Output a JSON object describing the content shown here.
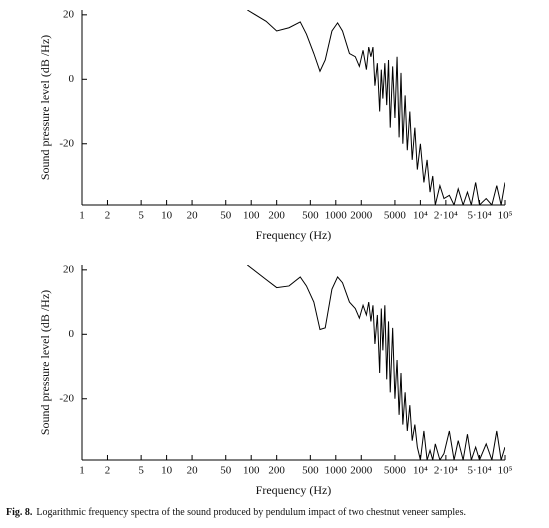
{
  "chart_data": [
    {
      "type": "line",
      "xscale": "log",
      "color": "#000000",
      "ylabel": "Sound pressure level (dB /Hz)",
      "xlabel": "Frequency (Hz)",
      "xlim": [
        1,
        100000
      ],
      "ylim": [
        -39,
        21.5
      ],
      "xticks": [
        1,
        2,
        5,
        10,
        20,
        50,
        100,
        200,
        500,
        1000,
        2000,
        5000,
        {
          "value": 10000,
          "label": "10⁴"
        },
        {
          "value": 20000,
          "label": "2·10⁴"
        },
        {
          "value": 50000,
          "label": "5·10⁴"
        },
        {
          "value": 100000,
          "label": "10⁵"
        }
      ],
      "yticks": [
        20,
        0,
        -20
      ],
      "x": [
        90,
        150,
        200,
        280,
        380,
        450,
        550,
        650,
        750,
        900,
        1050,
        1200,
        1450,
        1700,
        1900,
        2100,
        2300,
        2450,
        2600,
        2750,
        2900,
        3100,
        3300,
        3450,
        3600,
        3800,
        4000,
        4200,
        4400,
        4700,
        5000,
        5300,
        5600,
        5900,
        6200,
        6600,
        7000,
        7500,
        8000,
        8600,
        9200,
        10000,
        11000,
        12000,
        13000,
        14000,
        15000,
        17000,
        19000,
        22000,
        25000,
        28000,
        32000,
        36000,
        40000,
        45000,
        50000,
        60000,
        70000,
        80000,
        90000,
        100000
      ],
      "values": [
        21.5,
        18,
        15,
        16,
        17.8,
        14,
        8,
        2.5,
        6,
        15,
        17.5,
        15,
        8,
        7,
        4,
        9,
        3,
        10,
        7,
        10,
        -2,
        5,
        -10,
        3,
        -6,
        5,
        -8,
        6,
        -15,
        4,
        -12,
        7,
        -18,
        2,
        -20,
        -5,
        -22,
        -10,
        -25,
        -15,
        -28,
        -20,
        -32,
        -25,
        -35,
        -30,
        -39,
        -33,
        -37,
        -36,
        -39,
        -34,
        -39,
        -35,
        -39,
        -32,
        -39,
        -37,
        -39,
        -33,
        -39,
        -32
      ]
    },
    {
      "type": "line",
      "xscale": "log",
      "color": "#000000",
      "ylabel": "Sound pressure level (dB /Hz)",
      "xlabel": "Frequency (Hz)",
      "xlim": [
        1,
        100000
      ],
      "ylim": [
        -39,
        21.5
      ],
      "xticks": [
        1,
        2,
        5,
        10,
        20,
        50,
        100,
        200,
        500,
        1000,
        2000,
        5000,
        {
          "value": 10000,
          "label": "10⁴"
        },
        {
          "value": 20000,
          "label": "2·10⁴"
        },
        {
          "value": 50000,
          "label": "5·10⁴"
        },
        {
          "value": 100000,
          "label": "10⁵"
        }
      ],
      "yticks": [
        20,
        0,
        -20
      ],
      "x": [
        90,
        150,
        200,
        280,
        380,
        450,
        550,
        650,
        750,
        900,
        1050,
        1200,
        1450,
        1700,
        1900,
        2100,
        2300,
        2450,
        2600,
        2750,
        2900,
        3100,
        3300,
        3450,
        3600,
        3800,
        4000,
        4200,
        4400,
        4700,
        5000,
        5300,
        5600,
        5900,
        6200,
        6600,
        7000,
        7500,
        8000,
        8600,
        9200,
        10000,
        11000,
        12000,
        13000,
        14000,
        15000,
        17000,
        19000,
        22000,
        25000,
        28000,
        32000,
        36000,
        40000,
        45000,
        50000,
        60000,
        70000,
        80000,
        90000,
        100000
      ],
      "values": [
        21.5,
        17,
        14.5,
        15,
        17.8,
        15,
        10,
        1.5,
        2,
        14,
        17.8,
        16,
        10,
        8,
        5,
        9,
        6,
        10,
        4,
        9,
        -3,
        6,
        -12,
        8,
        -5,
        9,
        -14,
        4,
        -18,
        2,
        -20,
        -8,
        -25,
        -12,
        -28,
        -18,
        -30,
        -22,
        -33,
        -28,
        -35,
        -39,
        -30,
        -39,
        -36,
        -39,
        -34,
        -39,
        -37,
        -30,
        -39,
        -33,
        -39,
        -31,
        -39,
        -35,
        -39,
        -34,
        -39,
        -30,
        -39,
        -35
      ]
    }
  ],
  "caption": {
    "label": "Fig. 8.",
    "text": "Logarithmic frequency spectra of the sound produced by pendulum impact of two chestnut veneer samples."
  }
}
